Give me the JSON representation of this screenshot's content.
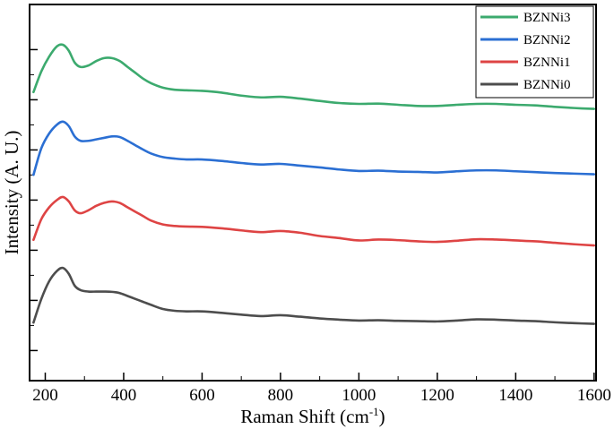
{
  "chart_data": {
    "type": "line",
    "xlabel": "Raman Shift (cm",
    "xlabel_sup": "-1",
    "xlabel_close": ")",
    "ylabel": "Intensity (A. U.)",
    "xlim": [
      160,
      1605
    ],
    "ylim": [
      0,
      1
    ],
    "xticks": [
      200,
      400,
      600,
      800,
      1000,
      1200,
      1400,
      1600
    ],
    "xtick_labels": [
      "200",
      "400",
      "600",
      "800",
      "1000",
      "1200",
      "1400",
      "1600"
    ],
    "yticks_major_count": 7,
    "y_tick_labels_shown": false,
    "grid": false,
    "legend_position": "top-right",
    "series": [
      {
        "name": "BZNNi3",
        "color": "#3caa6e",
        "x": [
          170,
          190,
          210,
          230,
          245,
          260,
          275,
          290,
          310,
          330,
          350,
          370,
          390,
          410,
          430,
          450,
          470,
          500,
          530,
          560,
          600,
          650,
          700,
          750,
          800,
          850,
          900,
          950,
          1000,
          1050,
          1100,
          1150,
          1200,
          1250,
          1300,
          1350,
          1400,
          1450,
          1500,
          1550,
          1600
        ],
        "y": [
          0.84,
          0.91,
          0.96,
          0.995,
          1.0,
          0.98,
          0.94,
          0.925,
          0.93,
          0.945,
          0.955,
          0.955,
          0.945,
          0.925,
          0.905,
          0.885,
          0.87,
          0.855,
          0.848,
          0.846,
          0.844,
          0.838,
          0.828,
          0.822,
          0.824,
          0.818,
          0.81,
          0.803,
          0.8,
          0.801,
          0.797,
          0.793,
          0.793,
          0.797,
          0.8,
          0.8,
          0.797,
          0.795,
          0.79,
          0.786,
          0.783
        ]
      },
      {
        "name": "BZNNi2",
        "color": "#2b6fd3",
        "x": [
          170,
          190,
          210,
          230,
          245,
          260,
          275,
          290,
          310,
          330,
          350,
          370,
          390,
          410,
          430,
          450,
          470,
          500,
          530,
          560,
          600,
          650,
          700,
          750,
          800,
          850,
          900,
          950,
          1000,
          1050,
          1100,
          1150,
          1200,
          1250,
          1300,
          1350,
          1400,
          1450,
          1500,
          1550,
          1600
        ],
        "y": [
          0.56,
          0.65,
          0.7,
          0.73,
          0.74,
          0.725,
          0.69,
          0.675,
          0.675,
          0.68,
          0.685,
          0.69,
          0.688,
          0.675,
          0.66,
          0.645,
          0.632,
          0.62,
          0.615,
          0.612,
          0.612,
          0.607,
          0.6,
          0.595,
          0.597,
          0.591,
          0.585,
          0.578,
          0.573,
          0.574,
          0.571,
          0.57,
          0.568,
          0.572,
          0.575,
          0.575,
          0.572,
          0.569,
          0.566,
          0.564,
          0.562
        ]
      },
      {
        "name": "BZNNi1",
        "color": "#de4444",
        "x": [
          170,
          190,
          210,
          230,
          245,
          260,
          275,
          290,
          310,
          330,
          350,
          370,
          390,
          410,
          430,
          450,
          470,
          500,
          530,
          560,
          600,
          650,
          700,
          750,
          800,
          850,
          900,
          950,
          1000,
          1050,
          1100,
          1150,
          1200,
          1250,
          1300,
          1350,
          1400,
          1450,
          1500,
          1550,
          1600
        ],
        "y": [
          0.34,
          0.41,
          0.45,
          0.475,
          0.485,
          0.47,
          0.44,
          0.43,
          0.44,
          0.455,
          0.465,
          0.47,
          0.465,
          0.45,
          0.435,
          0.42,
          0.405,
          0.392,
          0.387,
          0.385,
          0.384,
          0.379,
          0.372,
          0.366,
          0.37,
          0.364,
          0.353,
          0.346,
          0.338,
          0.341,
          0.339,
          0.335,
          0.333,
          0.337,
          0.342,
          0.341,
          0.338,
          0.335,
          0.33,
          0.325,
          0.321
        ]
      },
      {
        "name": "BZNNi0",
        "color": "#4d4d4d",
        "x": [
          170,
          190,
          210,
          230,
          245,
          260,
          275,
          290,
          310,
          330,
          350,
          370,
          390,
          410,
          430,
          450,
          470,
          500,
          530,
          560,
          600,
          650,
          700,
          750,
          800,
          850,
          900,
          950,
          1000,
          1050,
          1100,
          1150,
          1200,
          1250,
          1300,
          1350,
          1400,
          1450,
          1500,
          1550,
          1600
        ],
        "y": [
          0.06,
          0.14,
          0.2,
          0.235,
          0.245,
          0.225,
          0.185,
          0.17,
          0.165,
          0.165,
          0.165,
          0.164,
          0.16,
          0.15,
          0.14,
          0.13,
          0.12,
          0.106,
          0.1,
          0.098,
          0.098,
          0.093,
          0.087,
          0.082,
          0.085,
          0.08,
          0.074,
          0.07,
          0.067,
          0.068,
          0.066,
          0.065,
          0.064,
          0.067,
          0.071,
          0.07,
          0.067,
          0.065,
          0.061,
          0.058,
          0.056
        ]
      }
    ]
  }
}
